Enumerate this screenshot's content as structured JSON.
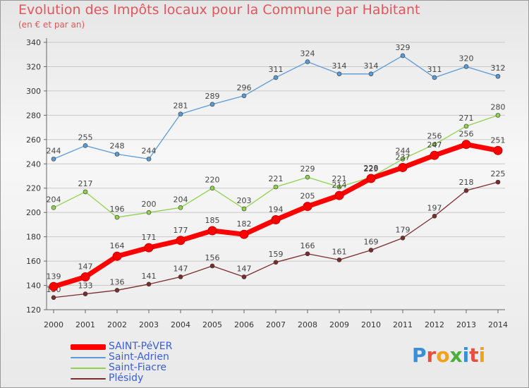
{
  "header": {
    "title": "Evolution des Impôts locaux pour la Commune par Habitant",
    "subtitle": "(en € et par an)"
  },
  "logo": {
    "text": "Proxiti",
    "colors": [
      "#3a8fd6",
      "#e6503c",
      "#f0a31a",
      "#4caf3c",
      "#3a8fd6",
      "#e6503c",
      "#f0a31a"
    ]
  },
  "chart_data": {
    "type": "line",
    "title": "Evolution des Impôts locaux pour la Commune par Habitant",
    "subtitle": "(en € et par an)",
    "x": [
      "2000",
      "2001",
      "2002",
      "2003",
      "2004",
      "2005",
      "2006",
      "2007",
      "2008",
      "2009",
      "2010",
      "2011",
      "2012",
      "2013",
      "2014"
    ],
    "ylim": [
      120,
      340
    ],
    "yticks": [
      120,
      140,
      160,
      180,
      200,
      220,
      240,
      260,
      280,
      300,
      320,
      340
    ],
    "grid": true,
    "legend_position": "bottom-left",
    "series": [
      {
        "name": "SAINT-PéVER",
        "color": "#ff0000",
        "values": [
          139,
          147,
          164,
          171,
          177,
          185,
          182,
          194,
          205,
          214,
          228,
          237,
          247,
          256,
          251
        ]
      },
      {
        "name": "Saint-Adrien",
        "color": "#5b9bd5",
        "values": [
          244,
          255,
          248,
          244,
          281,
          289,
          296,
          311,
          324,
          314,
          314,
          329,
          311,
          320,
          312
        ]
      },
      {
        "name": "Saint-Fiacre",
        "color": "#8fd14f",
        "values": [
          204,
          217,
          196,
          200,
          204,
          220,
          203,
          221,
          229,
          221,
          229,
          244,
          256,
          271,
          280
        ]
      },
      {
        "name": "Plésidy",
        "color": "#7b2c2c",
        "values": [
          130,
          133,
          136,
          141,
          147,
          156,
          147,
          159,
          166,
          161,
          169,
          179,
          197,
          218,
          225
        ]
      }
    ]
  }
}
